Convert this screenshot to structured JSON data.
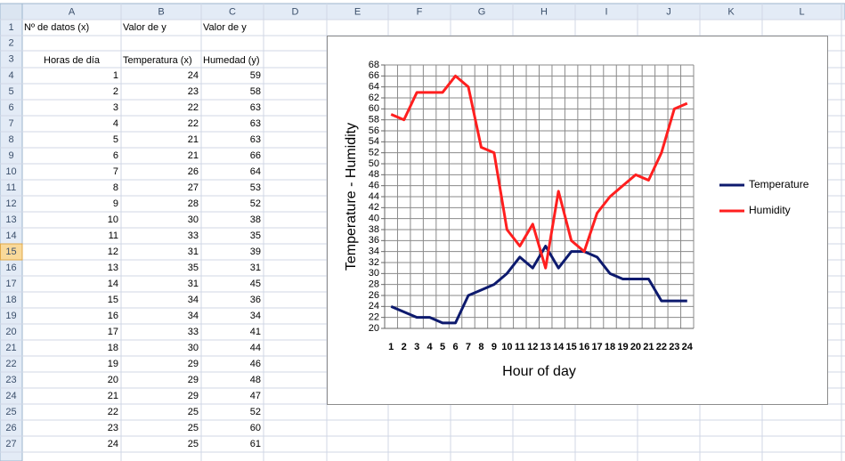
{
  "sheet": {
    "columns": [
      "A",
      "B",
      "C",
      "D",
      "E",
      "F",
      "G",
      "H",
      "I",
      "J",
      "K",
      "L"
    ],
    "row_numbers": [
      1,
      2,
      3,
      4,
      5,
      6,
      7,
      8,
      9,
      10,
      11,
      12,
      13,
      14,
      15,
      16,
      17,
      18,
      19,
      20,
      21,
      22,
      23,
      24,
      25,
      26,
      27
    ],
    "active_row": 15,
    "row_1": [
      "Nº de datos (x)",
      "Valor de y",
      "Valor de y"
    ],
    "row_3": [
      "Horas de día",
      "Temperatura (x)",
      "Humedad (y)"
    ],
    "data_rows": [
      [
        1,
        24,
        59
      ],
      [
        2,
        23,
        58
      ],
      [
        3,
        22,
        63
      ],
      [
        4,
        22,
        63
      ],
      [
        5,
        21,
        63
      ],
      [
        6,
        21,
        66
      ],
      [
        7,
        26,
        64
      ],
      [
        8,
        27,
        53
      ],
      [
        9,
        28,
        52
      ],
      [
        10,
        30,
        38
      ],
      [
        11,
        33,
        35
      ],
      [
        12,
        31,
        39
      ],
      [
        13,
        35,
        31
      ],
      [
        14,
        31,
        45
      ],
      [
        15,
        34,
        36
      ],
      [
        16,
        34,
        34
      ],
      [
        17,
        33,
        41
      ],
      [
        18,
        30,
        44
      ],
      [
        19,
        29,
        46
      ],
      [
        20,
        29,
        48
      ],
      [
        21,
        29,
        47
      ],
      [
        22,
        25,
        52
      ],
      [
        23,
        25,
        60
      ],
      [
        24,
        25,
        61
      ]
    ]
  },
  "chart_data": {
    "type": "line",
    "x_label": "Hour of day",
    "y_label": "Temperature - Humidity",
    "categories": [
      1,
      2,
      3,
      4,
      5,
      6,
      7,
      8,
      9,
      10,
      11,
      12,
      13,
      14,
      15,
      16,
      17,
      18,
      19,
      20,
      21,
      22,
      23,
      24
    ],
    "series": [
      {
        "name": "Temperature",
        "color": "#0d1a6e",
        "values": [
          24,
          23,
          22,
          22,
          21,
          21,
          26,
          27,
          28,
          30,
          33,
          31,
          35,
          31,
          34,
          34,
          33,
          30,
          29,
          29,
          29,
          25,
          25,
          25
        ]
      },
      {
        "name": "Humidity",
        "color": "#ff1f1f",
        "values": [
          59,
          58,
          63,
          63,
          63,
          66,
          64,
          53,
          52,
          38,
          35,
          39,
          31,
          45,
          36,
          34,
          41,
          44,
          46,
          48,
          47,
          52,
          60,
          61
        ]
      }
    ],
    "ylim": [
      20,
      68
    ],
    "yticks": [
      20,
      22,
      24,
      26,
      28,
      30,
      32,
      34,
      36,
      38,
      40,
      42,
      44,
      46,
      48,
      50,
      52,
      54,
      56,
      58,
      60,
      62,
      64,
      66,
      68
    ],
    "grid": true,
    "legend": "right"
  }
}
